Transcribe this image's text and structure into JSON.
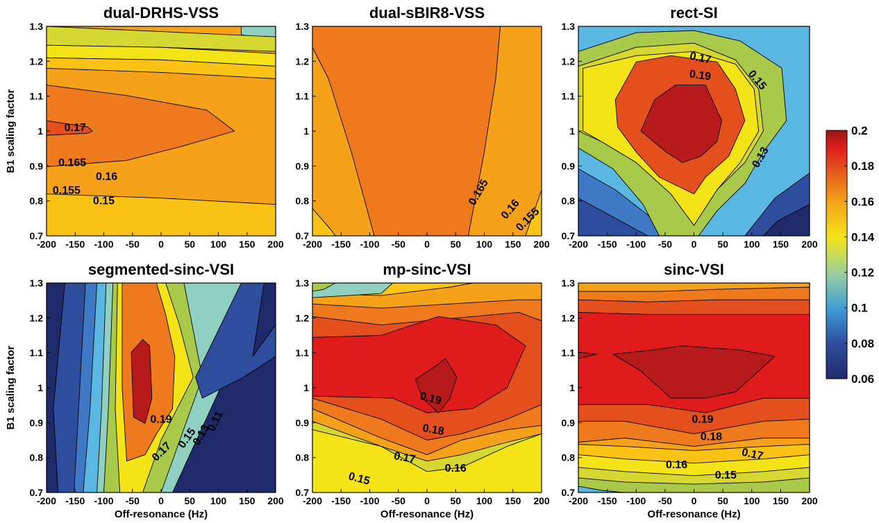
{
  "figure": {
    "ylabel": "B1 scaling factor",
    "xlabel": "Off-resonance (Hz)"
  },
  "colormap": [
    "#1f2a6b",
    "#2e4d9c",
    "#3f78c4",
    "#5ab7e2",
    "#8fd0c0",
    "#a9c94a",
    "#d7d731",
    "#f4e417",
    "#fbc316",
    "#f5a21a",
    "#ee7a1d",
    "#e3501d",
    "#df1c1b",
    "#b71a1a"
  ],
  "colorbar": {
    "min": 0.06,
    "max": 0.2,
    "ticks": [
      "0.2",
      "0.18",
      "0.16",
      "0.14",
      "0.12",
      "0.1",
      "0.08",
      "0.06"
    ]
  },
  "chart_data": [
    {
      "type": "contour",
      "title": "dual-DRHS-VSS",
      "x_ticks": [
        "-200",
        "-150",
        "-100",
        "-50",
        "0",
        "50",
        "100",
        "150",
        "200"
      ],
      "y_ticks": [
        "1.3",
        "1.2",
        "1.1",
        "1",
        "0.9",
        "0.8",
        "0.7"
      ],
      "xlabel": "",
      "ylabel": "B1 scaling factor",
      "xlim": [
        -200,
        200
      ],
      "ylim": [
        0.7,
        1.3
      ],
      "contour_labels": [
        {
          "text": "0.17",
          "x": -150,
          "y": 1.0,
          "rot": 0
        },
        {
          "text": "0.165",
          "x": -155,
          "y": 0.9,
          "rot": 0
        },
        {
          "text": "0.16",
          "x": -95,
          "y": 0.86,
          "rot": 0
        },
        {
          "text": "0.155",
          "x": -165,
          "y": 0.82,
          "rot": 0
        },
        {
          "text": "0.15",
          "x": -100,
          "y": 0.79,
          "rot": 0
        }
      ]
    },
    {
      "type": "contour",
      "title": "dual-sBIR8-VSS",
      "x_ticks": [
        "-200",
        "-150",
        "-100",
        "-50",
        "0",
        "50",
        "100",
        "150",
        "200"
      ],
      "y_ticks": [
        "1.3",
        "1.2",
        "1.1",
        "1",
        "0.9",
        "0.8",
        "0.7"
      ],
      "xlabel": "",
      "ylabel": "",
      "xlim": [
        -200,
        200
      ],
      "ylim": [
        0.7,
        1.3
      ],
      "contour_labels": [
        {
          "text": "0.165",
          "x": 95,
          "y": 0.82,
          "rot": -60
        },
        {
          "text": "0.16",
          "x": 150,
          "y": 0.77,
          "rot": -50
        },
        {
          "text": "0.155",
          "x": 180,
          "y": 0.74,
          "rot": -45
        }
      ]
    },
    {
      "type": "contour",
      "title": "rect-SI",
      "x_ticks": [
        "-200",
        "-150",
        "-100",
        "-50",
        "0",
        "50",
        "100",
        "150",
        "200"
      ],
      "y_ticks": [
        "1.3",
        "1.2",
        "1.1",
        "1",
        "0.9",
        "0.8",
        "0.7"
      ],
      "xlabel": "",
      "ylabel": "",
      "xlim": [
        -200,
        200
      ],
      "ylim": [
        0.7,
        1.3
      ],
      "contour_labels": [
        {
          "text": "0.17",
          "x": 10,
          "y": 1.2,
          "rot": 12
        },
        {
          "text": "0.19",
          "x": 10,
          "y": 1.15,
          "rot": 8
        },
        {
          "text": "0.15",
          "x": 105,
          "y": 1.14,
          "rot": 50
        },
        {
          "text": "0.13",
          "x": 120,
          "y": 0.92,
          "rot": -60
        }
      ]
    },
    {
      "type": "contour",
      "title": "segmented-sinc-VSI",
      "x_ticks": [
        "-200",
        "-150",
        "-100",
        "-50",
        "0",
        "50",
        "100",
        "150",
        "200"
      ],
      "y_ticks": [
        "1.3",
        "1.2",
        "1.1",
        "1",
        "0.9",
        "0.8",
        "0.7"
      ],
      "xlabel": "Off-resonance (Hz)",
      "ylabel": "B1 scaling factor",
      "xlim": [
        -200,
        200
      ],
      "ylim": [
        0.7,
        1.3
      ],
      "contour_labels": [
        {
          "text": "0.19",
          "x": 0,
          "y": 0.9,
          "rot": 0
        },
        {
          "text": "0.17",
          "x": 5,
          "y": 0.81,
          "rot": -45
        },
        {
          "text": "0.15",
          "x": 50,
          "y": 0.85,
          "rot": -55
        },
        {
          "text": "0.13",
          "x": 75,
          "y": 0.86,
          "rot": -60
        },
        {
          "text": "0.11",
          "x": 100,
          "y": 0.9,
          "rot": -65
        }
      ]
    },
    {
      "type": "contour",
      "title": "mp-sinc-VSI",
      "x_ticks": [
        "-200",
        "-150",
        "-100",
        "-50",
        "0",
        "50",
        "100",
        "150",
        "200"
      ],
      "y_ticks": [
        "1.3",
        "1.2",
        "1.1",
        "1",
        "0.9",
        "0.8",
        "0.7"
      ],
      "xlabel": "Off-resonance (Hz)",
      "ylabel": "",
      "xlim": [
        -200,
        200
      ],
      "ylim": [
        0.7,
        1.3
      ],
      "contour_labels": [
        {
          "text": "0.19",
          "x": 5,
          "y": 0.96,
          "rot": 15
        },
        {
          "text": "0.18",
          "x": 10,
          "y": 0.87,
          "rot": 10
        },
        {
          "text": "0.17",
          "x": -40,
          "y": 0.79,
          "rot": 10
        },
        {
          "text": "0.16",
          "x": 50,
          "y": 0.76,
          "rot": 0
        },
        {
          "text": "0.15",
          "x": -120,
          "y": 0.73,
          "rot": 15
        }
      ]
    },
    {
      "type": "contour",
      "title": "sinc-VSI",
      "x_ticks": [
        "-200",
        "-150",
        "-100",
        "-50",
        "0",
        "50",
        "100",
        "150",
        "200"
      ],
      "y_ticks": [
        "1.3",
        "1.2",
        "1.1",
        "1",
        "0.9",
        "0.8",
        "0.7"
      ],
      "xlabel": "Off-resonance (Hz)",
      "ylabel": "",
      "xlim": [
        -200,
        200
      ],
      "ylim": [
        0.7,
        1.3
      ],
      "contour_labels": [
        {
          "text": "0.19",
          "x": 15,
          "y": 0.9,
          "rot": 0
        },
        {
          "text": "0.18",
          "x": 30,
          "y": 0.85,
          "rot": 0
        },
        {
          "text": "0.17",
          "x": 100,
          "y": 0.8,
          "rot": 12
        },
        {
          "text": "0.16",
          "x": -30,
          "y": 0.77,
          "rot": 0
        },
        {
          "text": "0.15",
          "x": 55,
          "y": 0.74,
          "rot": 0
        }
      ]
    }
  ]
}
